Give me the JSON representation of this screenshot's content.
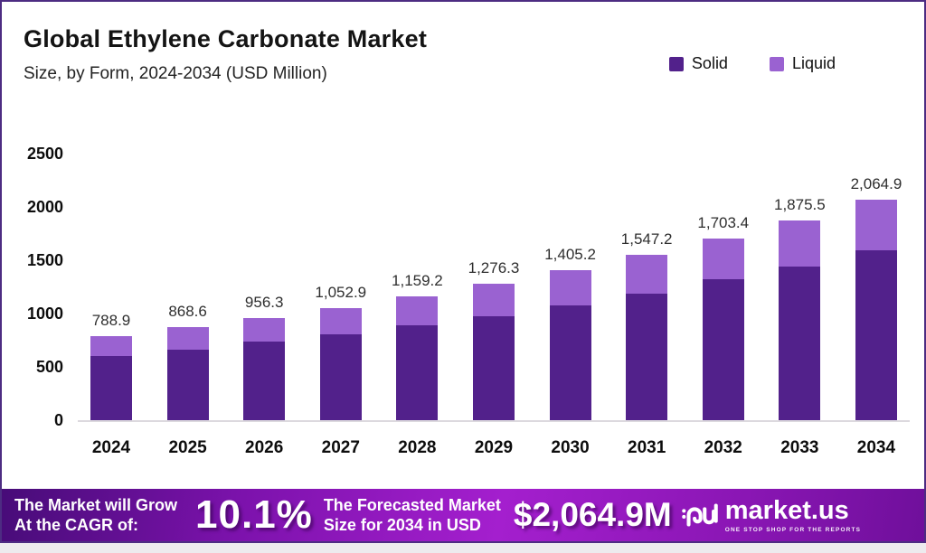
{
  "header": {
    "title": "Global Ethylene Carbonate Market",
    "subtitle": "Size, by Form, 2024-2034 (USD Million)"
  },
  "chart_data": {
    "type": "bar",
    "stacked": true,
    "title": "Global Ethylene Carbonate Market Size, by Form, 2024-2034 (USD Million)",
    "categories": [
      "2024",
      "2025",
      "2026",
      "2027",
      "2028",
      "2029",
      "2030",
      "2031",
      "2032",
      "2033",
      "2034"
    ],
    "series": [
      {
        "name": "Solid",
        "color": "#52218B",
        "values": [
          600,
          660,
          733,
          806,
          886,
          978,
          1077,
          1185,
          1318,
          1440,
          1588
        ]
      },
      {
        "name": "Liquid",
        "color": "#9A62D1",
        "values": [
          188.9,
          208.6,
          223.3,
          246.9,
          273.2,
          298.3,
          328.2,
          362.2,
          385.4,
          435.5,
          476.9
        ]
      }
    ],
    "series_split_estimated_from_pixels": true,
    "totals": [
      788.9,
      868.6,
      956.3,
      1052.9,
      1159.2,
      1276.3,
      1405.2,
      1547.2,
      1703.4,
      1875.5,
      2064.9
    ],
    "total_labels": [
      "788.9",
      "868.6",
      "956.3",
      "1,052.9",
      "1,159.2",
      "1,276.3",
      "1,405.2",
      "1,547.2",
      "1,703.4",
      "1,875.5",
      "2,064.9"
    ],
    "xlabel": "",
    "ylabel": "",
    "ylim": [
      0,
      2650
    ],
    "y_ticks": [
      0,
      500,
      1000,
      1500,
      2000,
      2500
    ],
    "grid": false,
    "legend_position": "top-right"
  },
  "banner": {
    "left_line1": "The Market will Grow",
    "left_line2": "At the CAGR of:",
    "cagr": "10.1%",
    "mid_line1": "The Forecasted Market",
    "mid_line2": "Size for 2034 in USD",
    "forecast_value": "$2,064.9M",
    "brand": "market.us",
    "tagline": "ONE STOP SHOP FOR THE REPORTS"
  },
  "colors": {
    "solid": "#52218B",
    "liquid": "#9A62D1",
    "frame_border": "#4D2C82",
    "baseline": "#DCD9DE",
    "banner_gradient_start": "#470C78",
    "banner_gradient_mid": "#A41FCE",
    "banner_gradient_end": "#6F0F9B"
  }
}
